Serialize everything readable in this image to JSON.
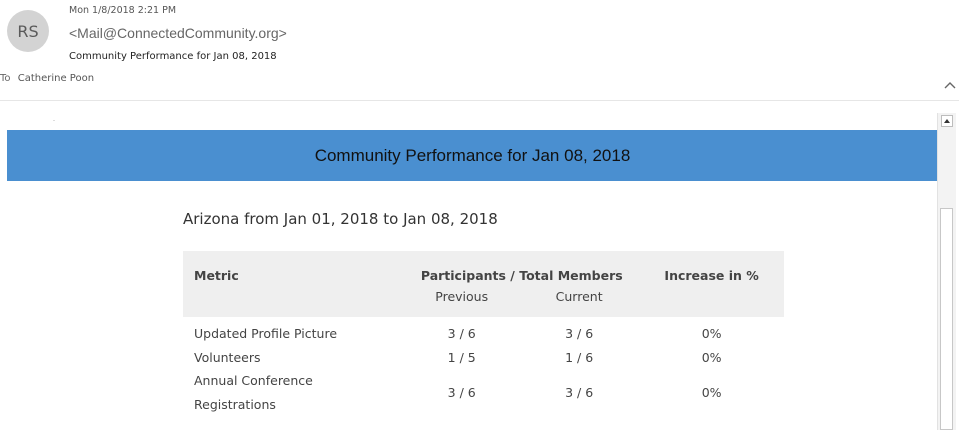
{
  "sender": {
    "initials": "RS",
    "date": "Mon 1/8/2018 2:21 PM",
    "from": "<Mail@ConnectedCommunity.org>",
    "subject": "Community Performance for Jan 08, 2018"
  },
  "recipients": {
    "label": "To",
    "name": "Catherine Poon"
  },
  "banner": {
    "title": "Community Performance for Jan 08, 2018",
    "color": "#4a8fd0"
  },
  "report": {
    "section_title": "Arizona from Jan 01, 2018 to Jan 08, 2018",
    "headers": {
      "metric": "Metric",
      "participants": "Participants / Total Members",
      "increase": "Increase in %",
      "previous": "Previous",
      "current": "Current"
    },
    "rows": [
      {
        "metric": "Updated Profile Picture",
        "previous": "3 / 6",
        "current": "3 / 6",
        "increase": "0%"
      },
      {
        "metric": "Volunteers",
        "previous": "1 / 5",
        "current": "1 / 6",
        "increase": "0%"
      },
      {
        "metric": "Annual Conference Registrations",
        "previous": "3 / 6",
        "current": "3 / 6",
        "increase": "0%"
      }
    ]
  },
  "icons": {
    "collapse": "chevron-up-icon",
    "scroll_up": "triangle-up-icon"
  }
}
